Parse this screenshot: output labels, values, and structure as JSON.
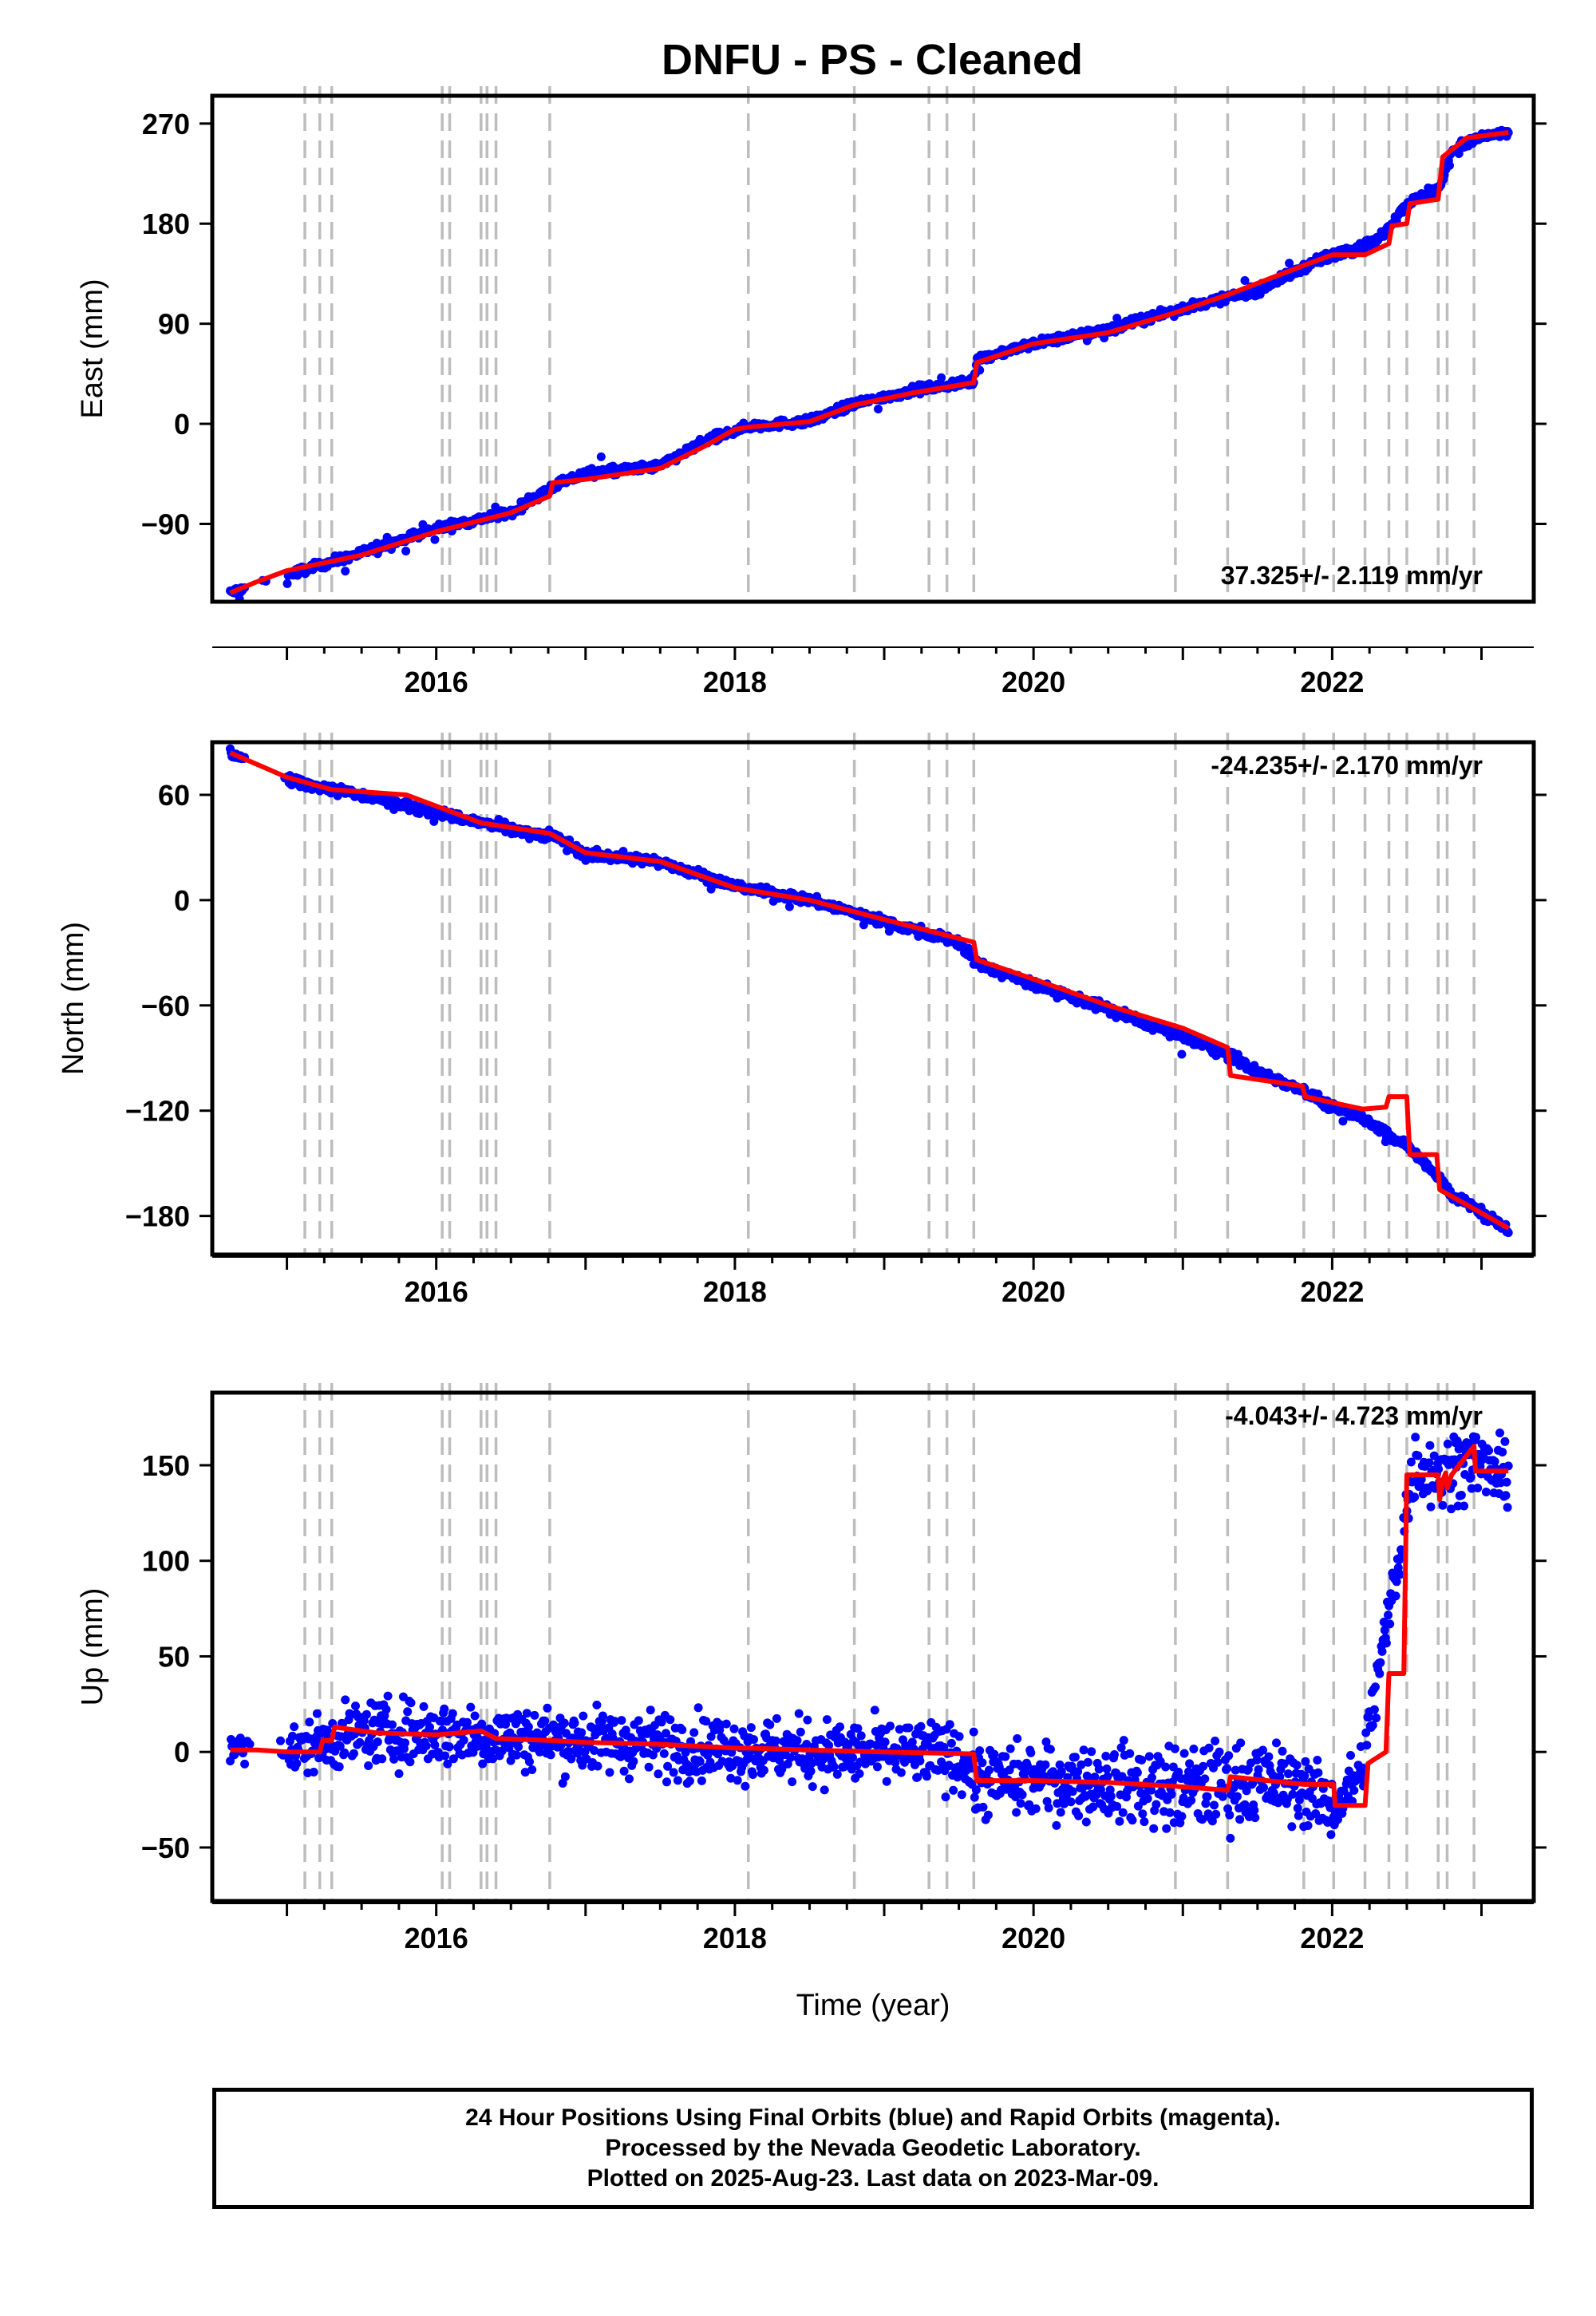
{
  "title": "DNFU  - PS - Cleaned",
  "footer": {
    "line1": "24 Hour Positions Using Final Orbits (blue) and Rapid Orbits (magenta).",
    "line2": "Processed by the Nevada Geodetic Laboratory.",
    "line3": "Plotted on 2025-Aug-23. Last data on 2023-Mar-09."
  },
  "colors": {
    "data": "#0000ff",
    "model": "#ff0000",
    "steps": "#bdbdbd",
    "frame": "#000000"
  },
  "chart_data": [
    {
      "type": "scatter",
      "ylabel": "East (mm)",
      "xlabel": "",
      "rate_label": "37.325+/- 2.119 mm/yr",
      "rate_position": "bottom-right",
      "xlim": [
        2014.5,
        2023.35
      ],
      "ylim": [
        -160,
        295
      ],
      "yticks": [
        -90,
        0,
        90,
        180,
        270
      ],
      "xticks": [
        2016,
        2018,
        2020,
        2022
      ],
      "step_epochs": [
        2015.12,
        2015.22,
        2015.3,
        2016.04,
        2016.09,
        2016.3,
        2016.34,
        2016.4,
        2016.76,
        2018.09,
        2018.8,
        2019.3,
        2019.42,
        2019.6,
        2020.95,
        2021.3,
        2021.81,
        2022.01,
        2022.22,
        2022.38,
        2022.5,
        2022.71,
        2022.77,
        2022.95
      ],
      "series": [
        {
          "name": "Final Orbits",
          "style": "points",
          "x": [
            2014.62,
            2015.0,
            2015.5,
            2016.0,
            2016.5,
            2016.8,
            2017.0,
            2017.5,
            2017.8,
            2018.1,
            2018.5,
            2018.8,
            2019.2,
            2019.6,
            2019.62,
            2020.0,
            2020.5,
            2021.0,
            2021.5,
            2021.8,
            2022.0,
            2022.3,
            2022.5,
            2022.72,
            2022.8,
            2023.0,
            2023.18
          ],
          "y": [
            -152,
            -136,
            -116,
            -94,
            -80,
            -55,
            -45,
            -38,
            -15,
            -2,
            2,
            18,
            30,
            38,
            58,
            72,
            85,
            104,
            120,
            140,
            152,
            165,
            198,
            212,
            245,
            258,
            262
          ]
        },
        {
          "name": "Model",
          "style": "line",
          "x": [
            2014.62,
            2014.8,
            2015.0,
            2015.5,
            2016.0,
            2016.5,
            2016.76,
            2016.78,
            2017.0,
            2017.5,
            2017.8,
            2018.0,
            2018.09,
            2018.5,
            2018.8,
            2019.2,
            2019.6,
            2019.62,
            2020.0,
            2020.5,
            2020.95,
            2021.3,
            2021.8,
            2022.0,
            2022.22,
            2022.38,
            2022.4,
            2022.5,
            2022.52,
            2022.71,
            2022.74,
            2022.9,
            2023.18
          ],
          "y": [
            -152,
            -142,
            -132,
            -118,
            -97,
            -80,
            -65,
            -53,
            -50,
            -40,
            -20,
            -5,
            -3,
            2,
            17,
            28,
            37,
            55,
            72,
            82,
            100,
            116,
            142,
            152,
            152,
            162,
            178,
            180,
            198,
            202,
            240,
            257,
            262
          ]
        }
      ]
    },
    {
      "type": "scatter",
      "ylabel": "North (mm)",
      "xlabel": "",
      "rate_label": "-24.235+/- 2.170 mm/yr",
      "rate_position": "top-right",
      "xlim": [
        2014.5,
        2023.35
      ],
      "ylim": [
        -202,
        90
      ],
      "yticks": [
        -180,
        -120,
        -60,
        0,
        60
      ],
      "xticks": [
        2016,
        2018,
        2020,
        2022
      ],
      "step_epochs": [
        2015.12,
        2015.22,
        2015.3,
        2016.04,
        2016.09,
        2016.3,
        2016.34,
        2016.4,
        2016.76,
        2018.09,
        2018.8,
        2019.3,
        2019.42,
        2019.6,
        2020.95,
        2021.3,
        2021.81,
        2022.01,
        2022.22,
        2022.38,
        2022.5,
        2022.71,
        2022.77,
        2022.95
      ],
      "series": [
        {
          "name": "Final Orbits",
          "style": "points",
          "x": [
            2014.62,
            2015.0,
            2015.5,
            2016.0,
            2016.5,
            2016.8,
            2017.0,
            2017.5,
            2018.0,
            2018.5,
            2019.0,
            2019.5,
            2019.62,
            2020.0,
            2020.5,
            2021.0,
            2021.3,
            2021.5,
            2021.8,
            2022.0,
            2022.2,
            2022.5,
            2022.72,
            2022.8,
            2023.0,
            2023.18
          ],
          "y": [
            84,
            68,
            60,
            50,
            40,
            36,
            26,
            22,
            8,
            0,
            -12,
            -24,
            -36,
            -48,
            -62,
            -78,
            -88,
            -98,
            -108,
            -118,
            -124,
            -140,
            -158,
            -168,
            -178,
            -188
          ]
        },
        {
          "name": "Model",
          "style": "line",
          "x": [
            2014.62,
            2015.0,
            2015.3,
            2015.8,
            2016.3,
            2016.76,
            2017.0,
            2017.5,
            2018.0,
            2018.5,
            2019.0,
            2019.6,
            2019.62,
            2020.0,
            2020.5,
            2021.0,
            2021.3,
            2021.32,
            2021.8,
            2021.82,
            2022.2,
            2022.22,
            2022.36,
            2022.38,
            2022.5,
            2022.52,
            2022.7,
            2022.72,
            2022.95,
            2023.18
          ],
          "y": [
            84,
            70,
            63,
            60,
            44,
            38,
            27,
            22,
            7,
            0,
            -11,
            -24,
            -34,
            -45,
            -60,
            -73,
            -84,
            -100,
            -106,
            -112,
            -119,
            -119,
            -118,
            -112,
            -112,
            -145,
            -145,
            -165,
            -176,
            -187
          ]
        }
      ]
    },
    {
      "type": "scatter",
      "ylabel": "Up (mm)",
      "xlabel": "Time (year)",
      "rate_label": "-4.043+/- 4.723 mm/yr",
      "rate_position": "top-right",
      "xlim": [
        2014.5,
        2023.35
      ],
      "ylim": [
        -78,
        188
      ],
      "yticks": [
        -50,
        0,
        50,
        100,
        150
      ],
      "xticks": [
        2016,
        2018,
        2020,
        2022
      ],
      "step_epochs": [
        2015.12,
        2015.22,
        2015.3,
        2016.04,
        2016.09,
        2016.3,
        2016.34,
        2016.4,
        2016.76,
        2018.09,
        2018.8,
        2019.3,
        2019.42,
        2019.6,
        2020.95,
        2021.3,
        2021.81,
        2022.01,
        2022.22,
        2022.38,
        2022.5,
        2022.71,
        2022.77,
        2022.95
      ],
      "series": [
        {
          "name": "Final Orbits",
          "style": "points",
          "x": [
            2014.62,
            2015.0,
            2015.5,
            2016.0,
            2016.5,
            2017.0,
            2017.5,
            2018.0,
            2018.5,
            2019.0,
            2019.5,
            2019.62,
            2020.0,
            2020.5,
            2021.0,
            2021.5,
            2021.8,
            2022.0,
            2022.2,
            2022.55,
            2022.75,
            2022.9,
            2023.18
          ],
          "y": [
            2,
            0,
            10,
            10,
            8,
            6,
            4,
            2,
            0,
            -1,
            -2,
            -15,
            -15,
            -16,
            -20,
            -15,
            -18,
            -30,
            -10,
            150,
            145,
            155,
            142
          ],
          "spread": [
            6,
            12,
            16,
            16,
            16,
            16,
            16,
            16,
            16,
            16,
            16,
            18,
            18,
            18,
            22,
            20,
            18,
            15,
            15,
            18,
            18,
            18,
            15
          ]
        },
        {
          "name": "Model",
          "style": "line",
          "x": [
            2014.62,
            2014.8,
            2015.0,
            2015.22,
            2015.24,
            2015.3,
            2015.32,
            2015.6,
            2016.0,
            2016.3,
            2016.4,
            2016.76,
            2017.0,
            2017.5,
            2018.0,
            2018.09,
            2018.5,
            2019.0,
            2019.6,
            2019.62,
            2020.0,
            2020.5,
            2020.95,
            2021.3,
            2021.32,
            2021.81,
            2022.01,
            2022.02,
            2022.22,
            2022.24,
            2022.3,
            2022.36,
            2022.38,
            2022.48,
            2022.5,
            2022.6,
            2022.71,
            2022.72,
            2022.74,
            2022.76,
            2022.77,
            2022.8,
            2022.9,
            2022.95,
            2022.96,
            2023.18
          ],
          "y": [
            1,
            1,
            0,
            0,
            6,
            6,
            13,
            10,
            9,
            11,
            7,
            6,
            5,
            4,
            2,
            2,
            1,
            0,
            -1,
            -15,
            -15,
            -16,
            -18,
            -20,
            -13,
            -17,
            -17,
            -28,
            -28,
            -6,
            -3,
            0,
            41,
            41,
            145,
            145,
            145,
            132,
            142,
            146,
            138,
            145,
            155,
            160,
            147,
            147
          ]
        }
      ]
    }
  ]
}
